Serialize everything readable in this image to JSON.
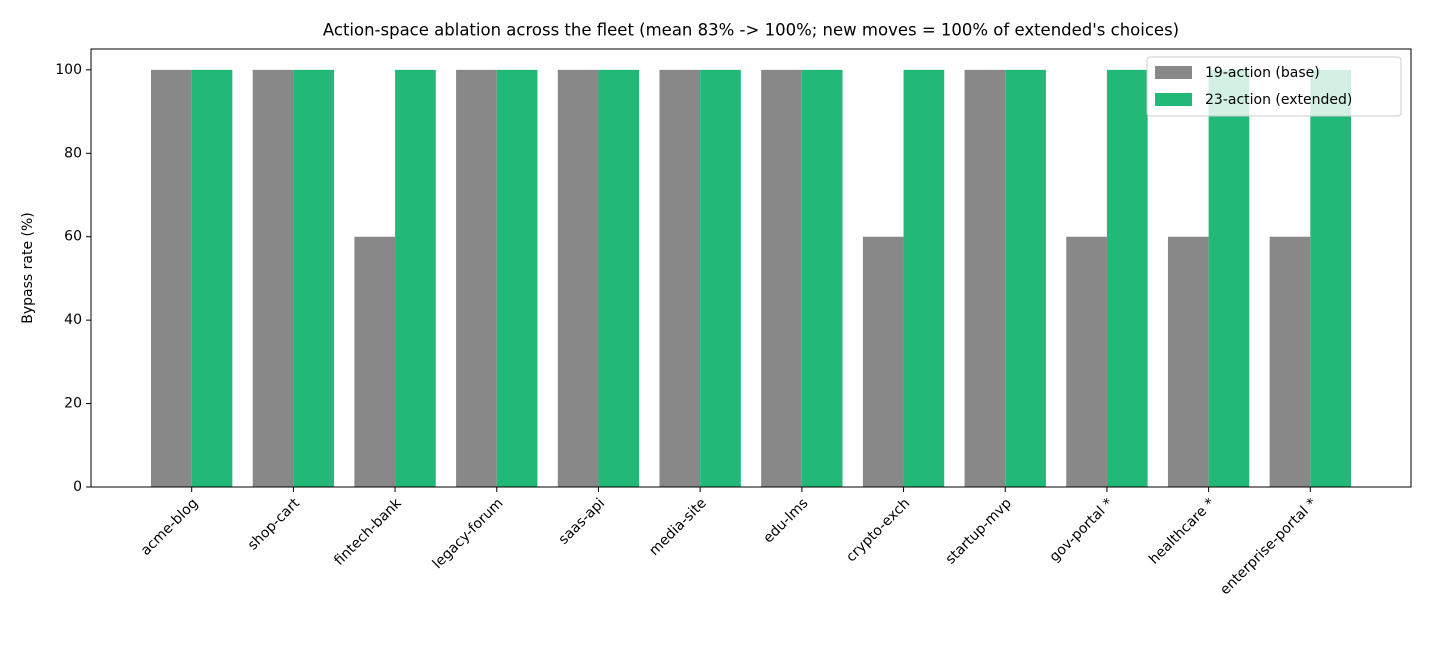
{
  "chart_data": {
    "type": "bar",
    "title": "Action-space ablation across the fleet  (mean 83% -> 100%; new moves = 100% of extended's choices)",
    "y_label": "Bypass rate (%)",
    "categories": [
      "acme-blog",
      "shop-cart",
      "fintech-bank",
      "legacy-forum",
      "saas-api",
      "media-site",
      "edu-lms",
      "crypto-exch",
      "startup-mvp",
      "gov-portal *",
      "healthcare *",
      "enterprise-portal *"
    ],
    "series": [
      {
        "name": "19-action (base)",
        "color": "#888888",
        "values": [
          100,
          100,
          60,
          100,
          100,
          100,
          100,
          60,
          100,
          60,
          60,
          60
        ]
      },
      {
        "name": "23-action (extended)",
        "color": "#22b877",
        "values": [
          100,
          100,
          100,
          100,
          100,
          100,
          100,
          100,
          100,
          100,
          100,
          100
        ]
      }
    ],
    "ylim": [
      0,
      105
    ],
    "yticks": [
      0,
      20,
      40,
      60,
      80,
      100
    ],
    "legend": "upper right",
    "grid": false
  }
}
